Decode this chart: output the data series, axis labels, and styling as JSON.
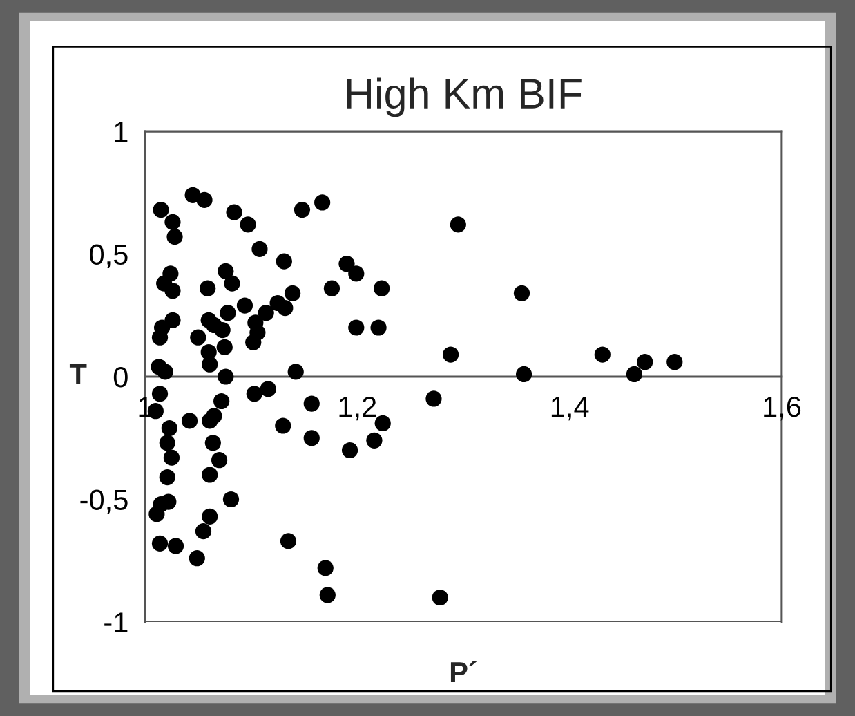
{
  "chart_data": {
    "type": "scatter",
    "title": "High Km BIF",
    "xlabel": "P´",
    "ylabel": "T",
    "xlim": [
      1,
      1.6
    ],
    "xticks": [
      1,
      {
        "value": 1.2,
        "label": "1,2"
      },
      {
        "value": 1.4,
        "label": "1,4"
      },
      {
        "value": 1.6,
        "label": "1,6"
      }
    ],
    "ylim": [
      -1,
      1
    ],
    "yticks": [
      {
        "value": -1,
        "label": "-1"
      },
      {
        "value": -0.5,
        "label": "-0,5"
      },
      0,
      {
        "value": 0.5,
        "label": "0,5"
      },
      1
    ],
    "grid": false,
    "marker": "circle",
    "series": [
      {
        "color": "#000000",
        "x": [
          1.015,
          1.045,
          1.056,
          1.026,
          1.028,
          1.084,
          1.097,
          1.108,
          1.148,
          1.167,
          1.295,
          1.131,
          1.19,
          1.199,
          1.176,
          1.223,
          1.355,
          1.024,
          1.018,
          1.026,
          1.076,
          1.082,
          1.059,
          1.139,
          1.125,
          1.132,
          1.094,
          1.114,
          1.078,
          1.104,
          1.106,
          1.102,
          1.06,
          1.065,
          1.073,
          1.075,
          1.06,
          1.061,
          1.05,
          1.026,
          1.016,
          1.014,
          1.199,
          1.22,
          1.288,
          1.431,
          1.471,
          1.499,
          1.461,
          1.357,
          1.142,
          1.013,
          1.019,
          1.076,
          1.014,
          1.01,
          1.023,
          1.042,
          1.061,
          1.065,
          1.072,
          1.103,
          1.116,
          1.13,
          1.157,
          1.157,
          1.193,
          1.216,
          1.224,
          1.272,
          1.021,
          1.025,
          1.021,
          1.064,
          1.07,
          1.061,
          1.081,
          1.022,
          1.015,
          1.011,
          1.061,
          1.055,
          1.014,
          1.029,
          1.049,
          1.135,
          1.17,
          1.172,
          1.278
        ],
        "values": [
          0.68,
          0.74,
          0.72,
          0.63,
          0.57,
          0.67,
          0.62,
          0.52,
          0.68,
          0.71,
          0.62,
          0.47,
          0.46,
          0.42,
          0.36,
          0.36,
          0.34,
          0.42,
          0.38,
          0.35,
          0.43,
          0.38,
          0.36,
          0.34,
          0.3,
          0.28,
          0.29,
          0.26,
          0.26,
          0.22,
          0.18,
          0.14,
          0.23,
          0.21,
          0.19,
          0.12,
          0.1,
          0.05,
          0.16,
          0.23,
          0.2,
          0.16,
          0.2,
          0.2,
          0.09,
          0.09,
          0.06,
          0.06,
          0.01,
          0.01,
          0.02,
          0.04,
          0.02,
          0.0,
          -0.07,
          -0.14,
          -0.21,
          -0.18,
          -0.18,
          -0.16,
          -0.1,
          -0.07,
          -0.05,
          -0.2,
          -0.11,
          -0.25,
          -0.3,
          -0.26,
          -0.19,
          -0.09,
          -0.27,
          -0.33,
          -0.41,
          -0.27,
          -0.34,
          -0.4,
          -0.5,
          -0.51,
          -0.52,
          -0.56,
          -0.57,
          -0.63,
          -0.68,
          -0.69,
          -0.74,
          -0.67,
          -0.78,
          -0.89,
          -0.9
        ]
      }
    ]
  }
}
